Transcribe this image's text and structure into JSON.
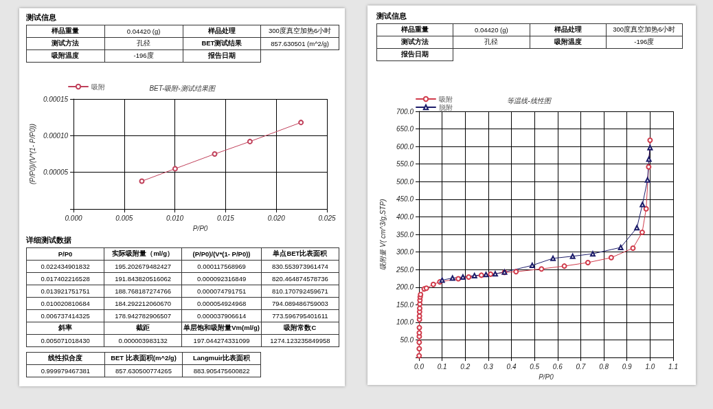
{
  "chart_data": [
    {
      "type": "other",
      "title": "测试信息",
      "annotations": [
        "样品重量",
        "0.04420 (g)",
        "样品处理",
        "300度真空加热6小时",
        "测试方法",
        "孔径",
        "BET测试结果",
        "857.630501 (m^2/g)",
        "吸附温度",
        "-196度",
        "报告日期"
      ]
    },
    {
      "type": "line",
      "title": "BET-吸附-测试结果图",
      "xlabel": "P/P0",
      "ylabel": "(P/P0)/(V*(1- P/P0))",
      "marker": "circle",
      "line_style": "solid",
      "grid": true,
      "legend": "top left",
      "xlim": [
        0,
        0.025
      ],
      "xticks": [
        {
          "value": 0,
          "label": "0.000"
        },
        {
          "value": 0.005,
          "label": "0.005"
        },
        {
          "value": 0.01,
          "label": "0.010"
        },
        {
          "value": 0.015,
          "label": "0.015"
        },
        {
          "value": 0.02,
          "label": "0.020"
        },
        {
          "value": 0.025,
          "label": "0.025"
        }
      ],
      "ylim": [
        0,
        0.00015
      ],
      "yticks": [
        {
          "value": 0,
          "label": null
        },
        {
          "value": 5e-05,
          "label": "0.00005"
        },
        {
          "value": 0.0001,
          "label": "0.00010"
        },
        {
          "value": 0.00015,
          "label": "0.00015"
        }
      ],
      "series": [
        {
          "name": "吸附",
          "color": "#c0405a",
          "x": [
            0.006737,
            0.010021,
            0.013922,
            0.017402,
            0.022435
          ],
          "values": [
            3.8e-05,
            5.5e-05,
            7.5e-05,
            9.2e-05,
            0.000118
          ]
        }
      ]
    },
    {
      "type": "other",
      "title": "详细测试数据",
      "annotations": [
        "P/P0",
        "实际吸附量（ml/g）",
        "(P/P0)/(V*(1- P/P0))",
        "单点BET比表面积",
        "0.022434901832",
        "195.202679482427",
        "0.000117568969",
        "830.553973961474",
        "0.017402216528",
        "191.843820516062",
        "0.000092316849",
        "820.464874578736",
        "0.013921751751",
        "188.768187274766",
        "0.000074791751",
        "810.170792459671",
        "0.010020810684",
        "184.292212060670",
        "0.000054924968",
        "794.089486759003",
        "0.006737414325",
        "178.942782906507",
        "0.000037906614",
        "773.596795401611",
        "斜率",
        "截距",
        "单层饱和吸附量Vm(ml/g)",
        "吸附常数C",
        "0.005071018430",
        "0.000003983132",
        "197.044274331099",
        "1274.123235849958"
      ]
    },
    {
      "type": "other",
      "annotations": [
        "线性拟合度",
        "BET 比表面积(m^2/g)",
        "Langmuir比表面积",
        "0.999979467381",
        "857.630500774265",
        "883.905475600822"
      ]
    },
    {
      "type": "other",
      "title": "测试信息",
      "annotations": [
        "样品重量",
        "0.04420 (g)",
        "样品处理",
        "300度真空加热6小时",
        "测试方法",
        "孔径",
        "吸附温度",
        "-196度",
        "报告日期"
      ]
    },
    {
      "type": "line",
      "title": "等温线-线性图",
      "xlabel": "P/P0",
      "ylabel": "吸附量 V( cm^3/g,STP)",
      "line_style": "solid",
      "grid": true,
      "legend": "top left",
      "xlim": [
        0,
        1.1
      ],
      "xticks": [
        {
          "value": 0,
          "label": "0.0"
        },
        {
          "value": 0.1,
          "label": "0.1"
        },
        {
          "value": 0.2,
          "label": "0.2"
        },
        {
          "value": 0.3,
          "label": "0.3"
        },
        {
          "value": 0.4,
          "label": "0.4"
        },
        {
          "value": 0.5,
          "label": "0.5"
        },
        {
          "value": 0.6,
          "label": "0.6"
        },
        {
          "value": 0.7,
          "label": "0.7"
        },
        {
          "value": 0.8,
          "label": "0.8"
        },
        {
          "value": 0.9,
          "label": "0.9"
        },
        {
          "value": 1.0,
          "label": "1.0"
        },
        {
          "value": 1.1,
          "label": "1.1"
        }
      ],
      "ylim": [
        0,
        700
      ],
      "yticks": [
        {
          "value": 0,
          "label": null
        },
        {
          "value": 50,
          "label": "50.0"
        },
        {
          "value": 100,
          "label": "100.0"
        },
        {
          "value": 150,
          "label": "150.0"
        },
        {
          "value": 200,
          "label": "200.0"
        },
        {
          "value": 250,
          "label": "250.0"
        },
        {
          "value": 300,
          "label": "300.0"
        },
        {
          "value": 350,
          "label": "350.0"
        },
        {
          "value": 400,
          "label": "400.0"
        },
        {
          "value": 450,
          "label": "450.0"
        },
        {
          "value": 500,
          "label": "500.0"
        },
        {
          "value": 550,
          "label": "550.0"
        },
        {
          "value": 600,
          "label": "600.0"
        },
        {
          "value": 650,
          "label": "650.0"
        },
        {
          "value": 700,
          "label": "700.0"
        }
      ],
      "series": [
        {
          "name": "吸附",
          "color": "#d03a4a",
          "marker": "circle",
          "x": [
            0.0005,
            0.001,
            0.001,
            0.0012,
            0.0013,
            0.0015,
            0.002,
            0.002,
            0.0025,
            0.003,
            0.0035,
            0.004,
            0.005,
            0.0067,
            0.0224,
            0.032,
            0.062,
            0.09,
            0.17,
            0.215,
            0.27,
            0.31,
            0.37,
            0.42,
            0.53,
            0.629,
            0.731,
            0.832,
            0.926,
            0.966,
            0.983,
            0.994,
            1.0
          ],
          "values": [
            5,
            25,
            43,
            60,
            70,
            85,
            108,
            118,
            130,
            140,
            152,
            163,
            172,
            179,
            195,
            197,
            208,
            215,
            224,
            229,
            234,
            237,
            242,
            244,
            252,
            260,
            270,
            284,
            311,
            356,
            423,
            542,
            618
          ]
        },
        {
          "name": "脱附",
          "color": "#1c1c6a",
          "marker": "triangle",
          "x": [
            1.0,
            0.995,
            0.989,
            0.967,
            0.943,
            0.873,
            0.752,
            0.665,
            0.58,
            0.49,
            0.37,
            0.33,
            0.29,
            0.24,
            0.19,
            0.145,
            0.1
          ],
          "values": [
            597,
            564,
            505,
            435,
            369,
            313,
            295,
            288,
            282,
            262,
            243,
            238,
            236,
            233,
            229,
            226,
            220
          ]
        }
      ]
    }
  ]
}
